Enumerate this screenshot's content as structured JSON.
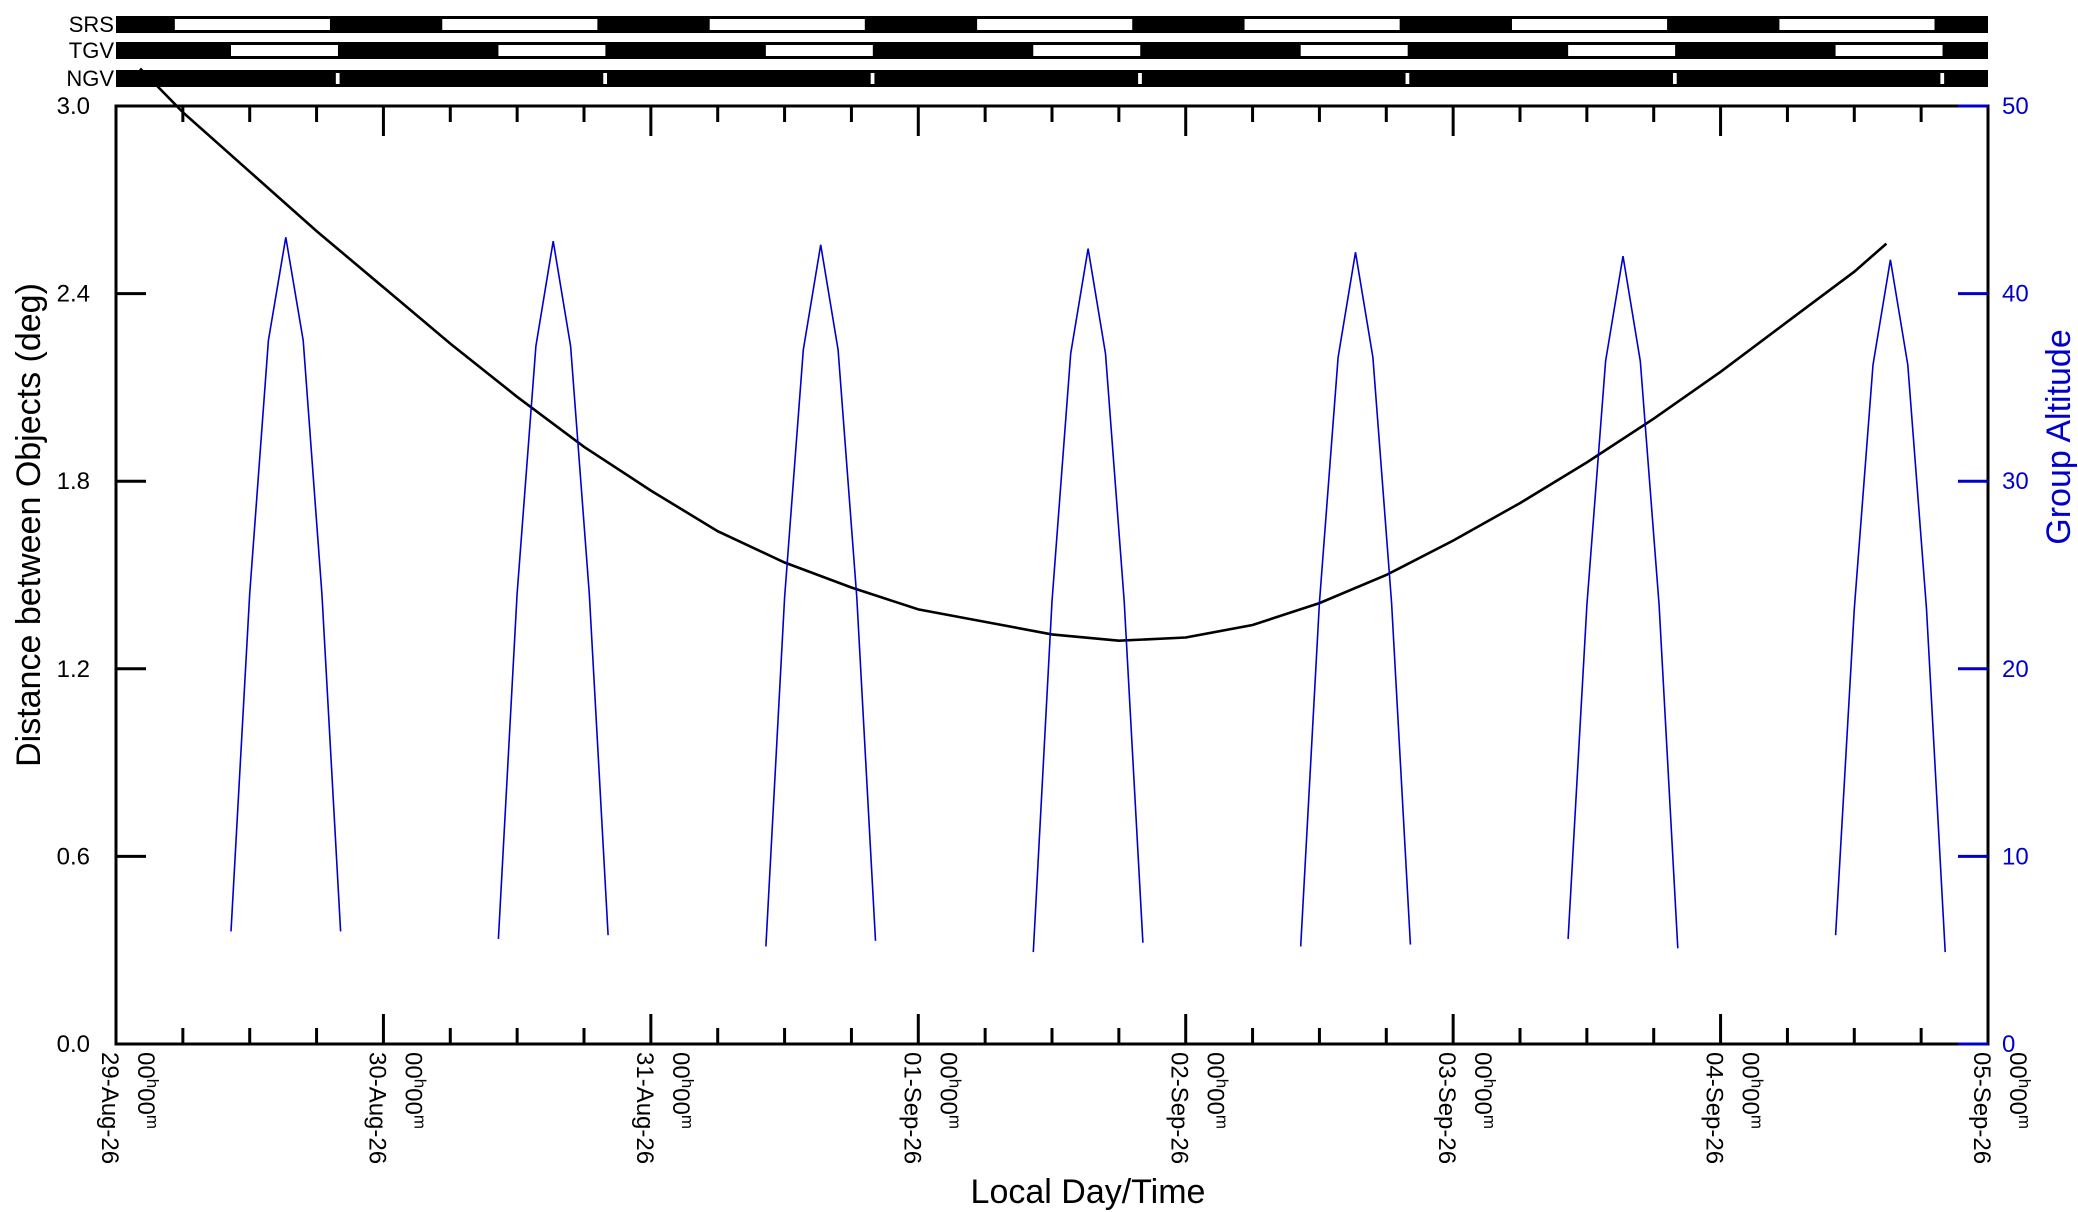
{
  "chart_data": {
    "type": "line",
    "title": "",
    "xlabel": "Local Day/Time",
    "ylabel": "Distance between Objects (deg)",
    "y2label": "Group Altitude",
    "ylim": [
      0,
      3.0
    ],
    "y2lim": [
      0,
      50
    ],
    "xlim": [
      0,
      7
    ],
    "yticks": [
      "0.0",
      "0.6",
      "1.2",
      "1.8",
      "2.4",
      "3.0"
    ],
    "y2ticks": [
      "0",
      "10",
      "20",
      "30",
      "40",
      "50"
    ],
    "x_tick_labels": [
      {
        "date": "29-Aug-26",
        "time": "00h00m"
      },
      {
        "date": "30-Aug-26",
        "time": "00h00m"
      },
      {
        "date": "31-Aug-26",
        "time": "00h00m"
      },
      {
        "date": "01-Sep-26",
        "time": "00h00m"
      },
      {
        "date": "02-Sep-26",
        "time": "00h00m"
      },
      {
        "date": "03-Sep-26",
        "time": "00h00m"
      },
      {
        "date": "04-Sep-26",
        "time": "00h00m"
      },
      {
        "date": "05-Sep-26",
        "time": "00h00m"
      }
    ],
    "grid": false,
    "colors": {
      "distance": "#000000",
      "altitude": "#0000cc"
    },
    "series": [
      {
        "axis": "left",
        "x_unit": "days since 29-Aug-26 00h00m",
        "points": [
          [
            0.09,
            3.12
          ],
          [
            0.25,
            2.98
          ],
          [
            0.5,
            2.79
          ],
          [
            0.75,
            2.6
          ],
          [
            1.0,
            2.42
          ],
          [
            1.25,
            2.24
          ],
          [
            1.5,
            2.07
          ],
          [
            1.75,
            1.91
          ],
          [
            2.0,
            1.77
          ],
          [
            2.25,
            1.64
          ],
          [
            2.5,
            1.54
          ],
          [
            2.75,
            1.46
          ],
          [
            3.0,
            1.39
          ],
          [
            3.25,
            1.35
          ],
          [
            3.5,
            1.31
          ],
          [
            3.75,
            1.29
          ],
          [
            4.0,
            1.3
          ],
          [
            4.25,
            1.34
          ],
          [
            4.5,
            1.41
          ],
          [
            4.75,
            1.5
          ],
          [
            5.0,
            1.61
          ],
          [
            5.25,
            1.73
          ],
          [
            5.5,
            1.86
          ],
          [
            5.75,
            2.0
          ],
          [
            6.0,
            2.15
          ],
          [
            6.25,
            2.31
          ],
          [
            6.5,
            2.47
          ],
          [
            6.62,
            2.56
          ]
        ]
      },
      {
        "axis": "right",
        "x_unit": "days since 29-Aug-26 00h00m",
        "points": [
          [
            0.43,
            6.0
          ],
          [
            0.5,
            24.0
          ],
          [
            0.57,
            37.5
          ],
          [
            0.635,
            43.0
          ],
          [
            0.7,
            37.5
          ],
          [
            0.77,
            24.0
          ],
          [
            0.84,
            6.0
          ],
          [
            null,
            null
          ],
          [
            1.43,
            5.6
          ],
          [
            1.5,
            24.0
          ],
          [
            1.57,
            37.2
          ],
          [
            1.635,
            42.8
          ],
          [
            1.7,
            37.2
          ],
          [
            1.77,
            24.0
          ],
          [
            1.84,
            5.8
          ],
          [
            null,
            null
          ],
          [
            2.43,
            5.2
          ],
          [
            2.5,
            23.8
          ],
          [
            2.57,
            37.0
          ],
          [
            2.635,
            42.6
          ],
          [
            2.7,
            37.0
          ],
          [
            2.77,
            23.8
          ],
          [
            2.84,
            5.5
          ],
          [
            null,
            null
          ],
          [
            3.43,
            4.9
          ],
          [
            3.5,
            23.6
          ],
          [
            3.57,
            36.8
          ],
          [
            3.635,
            42.4
          ],
          [
            3.7,
            36.8
          ],
          [
            3.77,
            23.6
          ],
          [
            3.84,
            5.4
          ],
          [
            null,
            null
          ],
          [
            4.43,
            5.2
          ],
          [
            4.5,
            23.5
          ],
          [
            4.57,
            36.6
          ],
          [
            4.635,
            42.2
          ],
          [
            4.7,
            36.6
          ],
          [
            4.77,
            23.5
          ],
          [
            4.84,
            5.3
          ],
          [
            null,
            null
          ],
          [
            5.43,
            5.6
          ],
          [
            5.5,
            23.4
          ],
          [
            5.57,
            36.4
          ],
          [
            5.635,
            42.0
          ],
          [
            5.7,
            36.4
          ],
          [
            5.77,
            23.4
          ],
          [
            5.84,
            5.1
          ],
          [
            null,
            null
          ],
          [
            6.43,
            5.8
          ],
          [
            6.5,
            23.2
          ],
          [
            6.57,
            36.2
          ],
          [
            6.635,
            41.8
          ],
          [
            6.7,
            36.2
          ],
          [
            6.77,
            23.2
          ],
          [
            6.84,
            4.9
          ]
        ]
      }
    ],
    "status_bars": [
      {
        "label": "SRS",
        "white_segments": [
          [
            0.22,
            0.8
          ],
          [
            1.22,
            1.8
          ],
          [
            2.22,
            2.8
          ],
          [
            3.22,
            3.8
          ],
          [
            4.22,
            4.8
          ],
          [
            5.22,
            5.8
          ],
          [
            6.22,
            6.8
          ]
        ]
      },
      {
        "label": "TGV",
        "white_segments": [
          [
            0.43,
            0.83
          ],
          [
            1.43,
            1.83
          ],
          [
            2.43,
            2.83
          ],
          [
            3.43,
            3.83
          ],
          [
            4.43,
            4.83
          ],
          [
            5.43,
            5.83
          ],
          [
            6.43,
            6.83
          ]
        ]
      },
      {
        "label": "NGV",
        "white_segments": [
          [
            0.822,
            0.836
          ],
          [
            1.822,
            1.836
          ],
          [
            2.822,
            2.836
          ],
          [
            3.822,
            3.836
          ],
          [
            4.822,
            4.836
          ],
          [
            5.822,
            5.836
          ],
          [
            6.822,
            6.836
          ]
        ]
      }
    ]
  }
}
